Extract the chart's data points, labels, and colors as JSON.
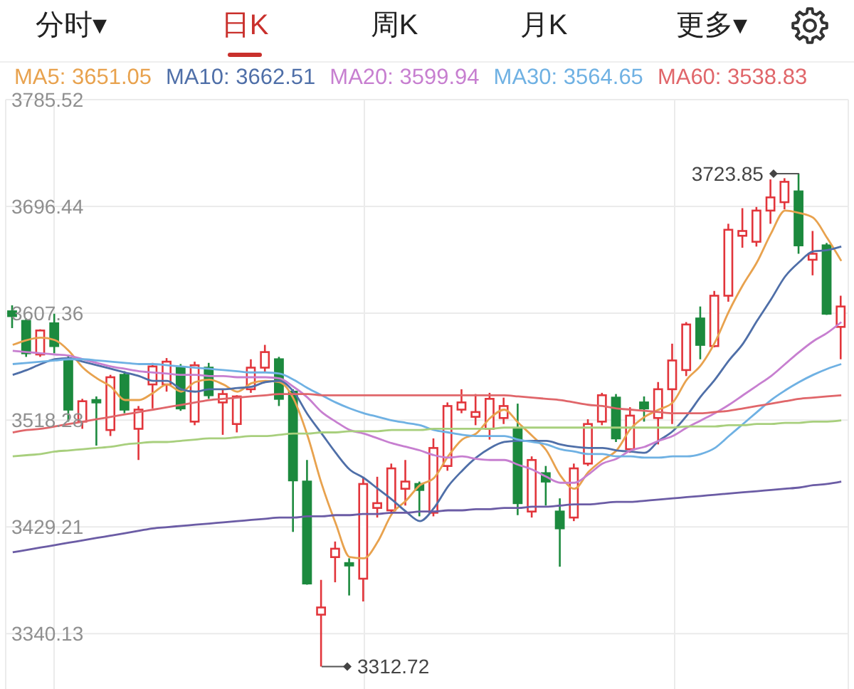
{
  "chart_data": {
    "type": "candlestick",
    "annotations": [
      "分时▾",
      "日K",
      "周K",
      "月K",
      "更多▾"
    ],
    "categories": [
      null,
      null,
      null,
      null,
      null,
      null,
      null,
      null,
      null,
      null,
      null,
      null,
      null,
      null,
      null,
      null,
      null,
      null,
      null,
      null,
      null,
      null,
      null,
      null,
      null,
      null,
      null,
      null,
      null,
      null,
      null,
      null,
      null,
      null,
      null,
      null,
      null,
      null,
      null,
      null,
      null,
      null,
      null,
      null,
      null,
      null,
      null,
      null,
      null,
      null,
      null,
      null,
      null,
      null,
      null,
      null,
      null,
      null,
      null,
      null
    ],
    "ohlc": [
      [
        3609,
        3614,
        3595,
        3605
      ],
      [
        3601,
        3603,
        3571,
        3574
      ],
      [
        3573,
        3594,
        3571,
        3593
      ],
      [
        3599,
        3607,
        3574,
        3580
      ],
      [
        3569,
        3572,
        3517,
        3527
      ],
      [
        3517,
        3536,
        3511,
        3534
      ],
      [
        3535,
        3538,
        3497,
        3533
      ],
      [
        3510,
        3556,
        3505,
        3554
      ],
      [
        3556,
        3559,
        3524,
        3527
      ],
      [
        3511,
        3530,
        3485,
        3527
      ],
      [
        3548,
        3566,
        3528,
        3563
      ],
      [
        3548,
        3570,
        3542,
        3567
      ],
      [
        3562,
        3565,
        3526,
        3528
      ],
      [
        3517,
        3567,
        3514,
        3564
      ],
      [
        3562,
        3566,
        3536,
        3539
      ],
      [
        3533,
        3544,
        3506,
        3540
      ],
      [
        3515,
        3539,
        3508,
        3538
      ],
      [
        3544,
        3569,
        3541,
        3562
      ],
      [
        3562,
        3581,
        3558,
        3575
      ],
      [
        3569,
        3571,
        3530,
        3536
      ],
      [
        3542,
        3544,
        3425,
        3468
      ],
      [
        3467,
        3485,
        3381,
        3382
      ],
      [
        3356,
        3385,
        3312.72,
        3362
      ],
      [
        3404,
        3417,
        3383,
        3411
      ],
      [
        3399,
        3403,
        3372,
        3397
      ],
      [
        3386,
        3471,
        3367,
        3465
      ],
      [
        3445,
        3471,
        3437,
        3449
      ],
      [
        3443,
        3482,
        3440,
        3478
      ],
      [
        3461,
        3485,
        3447,
        3467
      ],
      [
        3465,
        3467,
        3438,
        3460
      ],
      [
        3441,
        3503,
        3438,
        3495
      ],
      [
        3480,
        3533,
        3476,
        3530
      ],
      [
        3527,
        3544,
        3524,
        3533
      ],
      [
        3521,
        3540,
        3514,
        3525
      ],
      [
        3511,
        3541,
        3502,
        3536
      ],
      [
        3520,
        3537,
        3515,
        3530
      ],
      [
        3511,
        3532,
        3439,
        3449
      ],
      [
        3442,
        3488,
        3437,
        3485
      ],
      [
        3474,
        3480,
        3447,
        3467
      ],
      [
        3442,
        3453,
        3396,
        3428
      ],
      [
        3437,
        3482,
        3434,
        3478
      ],
      [
        3482,
        3519,
        3480,
        3515
      ],
      [
        3517,
        3541,
        3514,
        3539
      ],
      [
        3537,
        3540,
        3500,
        3503
      ],
      [
        3494,
        3529,
        3491,
        3522
      ],
      [
        3533,
        3538,
        3517,
        3528
      ],
      [
        3520,
        3550,
        3498,
        3544
      ],
      [
        3544,
        3582,
        3515,
        3568
      ],
      [
        3560,
        3600,
        3555,
        3598
      ],
      [
        3603,
        3613,
        3569,
        3581
      ],
      [
        3580,
        3626,
        3579,
        3622
      ],
      [
        3622,
        3682,
        3617,
        3677
      ],
      [
        3672,
        3695,
        3662,
        3676
      ],
      [
        3667,
        3696,
        3663,
        3693
      ],
      [
        3693,
        3719,
        3682,
        3704
      ],
      [
        3700,
        3720,
        3694,
        3717
      ],
      [
        3709,
        3723.85,
        3657,
        3664
      ],
      [
        3652,
        3676,
        3639,
        3657
      ],
      [
        3664,
        3666,
        3606,
        3607
      ],
      [
        3596,
        3622,
        3569,
        3613
      ]
    ],
    "value_labels": [
      null,
      null,
      null,
      null,
      null,
      null,
      null,
      null,
      null,
      null,
      null,
      null,
      null,
      null,
      null,
      null,
      null,
      null,
      null,
      null,
      null,
      null,
      "3312.72",
      null,
      null,
      null,
      null,
      null,
      null,
      null,
      null,
      null,
      null,
      null,
      null,
      null,
      null,
      null,
      null,
      null,
      null,
      null,
      null,
      null,
      null,
      null,
      null,
      null,
      null,
      null,
      null,
      null,
      null,
      null,
      null,
      null,
      "3723.85",
      null,
      null,
      null
    ],
    "colors": [
      "#1c8a3e",
      "#1c8a3e",
      "#e2353b",
      "#1c8a3e",
      "#1c8a3e",
      "#e2353b",
      "#1c8a3e",
      "#e2353b",
      "#1c8a3e",
      "#e2353b",
      "#e2353b",
      "#e2353b",
      "#1c8a3e",
      "#e2353b",
      "#1c8a3e",
      "#e2353b",
      "#e2353b",
      "#e2353b",
      "#e2353b",
      "#1c8a3e",
      "#1c8a3e",
      "#1c8a3e",
      "#e2353b",
      "#e2353b",
      "#1c8a3e",
      "#e2353b",
      "#e2353b",
      "#e2353b",
      "#e2353b",
      "#1c8a3e",
      "#e2353b",
      "#e2353b",
      "#e2353b",
      "#e2353b",
      "#e2353b",
      "#e2353b",
      "#1c8a3e",
      "#e2353b",
      "#1c8a3e",
      "#1c8a3e",
      "#e2353b",
      "#e2353b",
      "#e2353b",
      "#1c8a3e",
      "#e2353b",
      "#1c8a3e",
      "#e2353b",
      "#e2353b",
      "#e2353b",
      "#1c8a3e",
      "#e2353b",
      "#e2353b",
      "#e2353b",
      "#e2353b",
      "#e2353b",
      "#e2353b",
      "#1c8a3e",
      "#e2353b",
      "#1c8a3e",
      "#e2353b"
    ],
    "series": [
      {
        "name": "MA5: 3651.05",
        "type": "line",
        "color": "#e8a24e",
        "values": [
          3581,
          3585,
          3587,
          3585,
          3576,
          3562,
          3553,
          3546,
          3535,
          3535,
          3541,
          3548,
          3542,
          3550,
          3552,
          3548,
          3542,
          3549,
          3551,
          3550,
          3536,
          3505,
          3465,
          3432,
          3404,
          3403,
          3417,
          3440,
          3451,
          3464,
          3470,
          3488,
          3502,
          3507,
          3520,
          3527,
          3516,
          3505,
          3493,
          3472,
          3461,
          3475,
          3485,
          3493,
          3511,
          3521,
          3527,
          3533,
          3552,
          3564,
          3583,
          3609,
          3631,
          3650,
          3674,
          3693,
          3691,
          3687,
          3670,
          3651
        ]
      },
      {
        "name": "MA10: 3662.51",
        "type": "line",
        "color": "#4f6fa8",
        "values": [
          3556,
          3560,
          3565,
          3569,
          3570,
          3567,
          3564,
          3561,
          3558,
          3555,
          3551,
          3551,
          3544,
          3542,
          3544,
          3544,
          3545,
          3546,
          3550,
          3551,
          3542,
          3523,
          3507,
          3491,
          3477,
          3470,
          3461,
          3452,
          3442,
          3434,
          3445,
          3463,
          3476,
          3487,
          3495,
          3500,
          3501,
          3501,
          3501,
          3498,
          3496,
          3495,
          3495,
          3493,
          3492,
          3491,
          3501,
          3509,
          3522,
          3538,
          3552,
          3568,
          3582,
          3601,
          3619,
          3638,
          3650,
          3659,
          3660,
          3663
        ]
      },
      {
        "name": "MA20: 3599.94",
        "type": "line",
        "color": "#c77fd0",
        "values": [
          3576,
          3575,
          3574,
          3573,
          3572,
          3569,
          3566,
          3563,
          3561,
          3559,
          3558,
          3557,
          3556,
          3556,
          3555,
          3555,
          3554,
          3554,
          3554,
          3553,
          3546,
          3537,
          3525,
          3517,
          3510,
          3507,
          3503,
          3499,
          3496,
          3493,
          3489,
          3487,
          3488,
          3486,
          3485,
          3485,
          3481,
          3477,
          3471,
          3466,
          3466,
          3473,
          3482,
          3486,
          3493,
          3496,
          3501,
          3505,
          3512,
          3518,
          3524,
          3531,
          3539,
          3547,
          3555,
          3565,
          3575,
          3584,
          3591,
          3600
        ]
      },
      {
        "name": "MA30: 3564.65",
        "type": "line",
        "color": "#6fb1e3",
        "values": [
          3565,
          3566,
          3567,
          3568,
          3569,
          3569,
          3568,
          3567,
          3566,
          3565,
          3565,
          3564,
          3563,
          3562,
          3561,
          3560,
          3559,
          3558,
          3558,
          3557,
          3552,
          3545,
          3539,
          3533,
          3528,
          3524,
          3521,
          3518,
          3516,
          3514,
          3510,
          3508,
          3506,
          3505,
          3505,
          3505,
          3502,
          3500,
          3498,
          3494,
          3492,
          3490,
          3490,
          3488,
          3488,
          3487,
          3487,
          3488,
          3488,
          3490,
          3495,
          3505,
          3515,
          3525,
          3535,
          3543,
          3550,
          3556,
          3561,
          3565
        ]
      },
      {
        "name": "MA60: 3538.83",
        "type": "line",
        "color": "#e0666a",
        "values": [
          3508,
          3510,
          3511,
          3513,
          3515,
          3517,
          3519,
          3521,
          3523,
          3525,
          3527,
          3529,
          3531,
          3533,
          3535,
          3536,
          3537,
          3538,
          3539,
          3540,
          3540,
          3540,
          3539,
          3539,
          3539,
          3539,
          3539,
          3539,
          3539,
          3539,
          3539,
          3539,
          3539,
          3539,
          3539,
          3539,
          3538,
          3537,
          3536,
          3535,
          3533,
          3531,
          3530,
          3528,
          3527,
          3526,
          3525,
          3524,
          3524,
          3524,
          3525,
          3526,
          3528,
          3530,
          3532,
          3534,
          3536,
          3537,
          3538,
          3539
        ]
      },
      {
        "type": "line",
        "color": "#a8cf7d",
        "values": [
          3488,
          3489,
          3490,
          3492,
          3493,
          3494,
          3495,
          3496,
          3498,
          3499,
          3500,
          3500,
          3501,
          3502,
          3503,
          3503,
          3504,
          3505,
          3505,
          3506,
          3507,
          3507,
          3508,
          3508,
          3509,
          3509,
          3509,
          3510,
          3510,
          3510,
          3511,
          3511,
          3511,
          3511,
          3511,
          3512,
          3512,
          3512,
          3512,
          3512,
          3512,
          3512,
          3512,
          3512,
          3512,
          3512,
          3512,
          3512,
          3513,
          3513,
          3513,
          3514,
          3514,
          3515,
          3515,
          3516,
          3516,
          3517,
          3517,
          3518
        ]
      },
      {
        "type": "line",
        "color": "#6b5ca5",
        "values": [
          3408,
          3410,
          3412,
          3414,
          3416,
          3418,
          3420,
          3422,
          3424,
          3426,
          3428,
          3429,
          3430,
          3431,
          3432,
          3433,
          3434,
          3435,
          3436,
          3437,
          3437,
          3438,
          3438,
          3439,
          3439,
          3440,
          3440,
          3441,
          3441,
          3442,
          3442,
          3443,
          3443,
          3444,
          3444,
          3445,
          3445,
          3446,
          3446,
          3447,
          3448,
          3448,
          3449,
          3450,
          3450,
          3451,
          3452,
          3453,
          3454,
          3455,
          3456,
          3457,
          3458,
          3459,
          3460,
          3461,
          3462,
          3464,
          3465,
          3467
        ]
      }
    ],
    "ylim": [
      3294,
      3785.52
    ],
    "yticks": [
      3340.13,
      3429.21,
      3518.28,
      3607.36,
      3696.44,
      3785.52
    ],
    "grid": true,
    "legend": "top",
    "tick_labels": "y"
  }
}
